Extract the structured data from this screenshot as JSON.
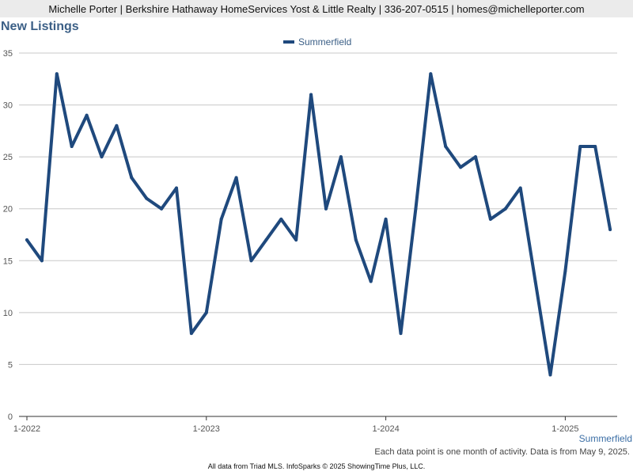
{
  "header": {
    "text": "Michelle Porter | Berkshire Hathaway HomeServices Yost & Little Realty | 336-207-0515 | homes@michelleporter.com"
  },
  "colors": {
    "series": "#1f497d",
    "title": "#3b5f86",
    "grid": "#c8c8c8",
    "axis": "#555555"
  },
  "chart_data": {
    "type": "line",
    "title": "New Listings",
    "legend": [
      "Summerfield"
    ],
    "legend_placement": "top-center",
    "grid": true,
    "ylim": [
      0,
      35
    ],
    "y_ticks": [
      "0",
      "5",
      "10",
      "15",
      "20",
      "25",
      "30",
      "35"
    ],
    "x_tick_labels": [
      "1-2022",
      "1-2023",
      "1-2024",
      "1-2025"
    ],
    "x_range_months": [
      "2022-01",
      "2025-04"
    ],
    "series": [
      {
        "name": "Summerfield",
        "x": [
          "2022-01",
          "2022-02",
          "2022-03",
          "2022-04",
          "2022-05",
          "2022-06",
          "2022-07",
          "2022-08",
          "2022-09",
          "2022-10",
          "2022-11",
          "2022-12",
          "2023-01",
          "2023-02",
          "2023-03",
          "2023-04",
          "2023-05",
          "2023-06",
          "2023-07",
          "2023-08",
          "2023-09",
          "2023-10",
          "2023-11",
          "2023-12",
          "2024-01",
          "2024-02",
          "2024-03",
          "2024-04",
          "2024-05",
          "2024-06",
          "2024-07",
          "2024-08",
          "2024-09",
          "2024-10",
          "2024-11",
          "2024-12",
          "2025-01",
          "2025-02",
          "2025-03",
          "2025-04"
        ],
        "values": [
          17,
          15,
          33,
          26,
          29,
          25,
          28,
          23,
          21,
          20,
          22,
          8,
          10,
          19,
          23,
          15,
          17,
          19,
          17,
          31,
          20,
          25,
          17,
          13,
          19,
          8,
          20,
          33,
          26,
          24,
          25,
          19,
          20,
          22,
          13,
          4,
          14,
          26,
          26,
          18
        ]
      }
    ]
  },
  "footer": {
    "corner_label": "Summerfield",
    "note": "Each data point is one month of activity. Data is from May 9, 2025.",
    "source": "All data from Triad MLS. InfoSparks © 2025 ShowingTime Plus, LLC."
  }
}
